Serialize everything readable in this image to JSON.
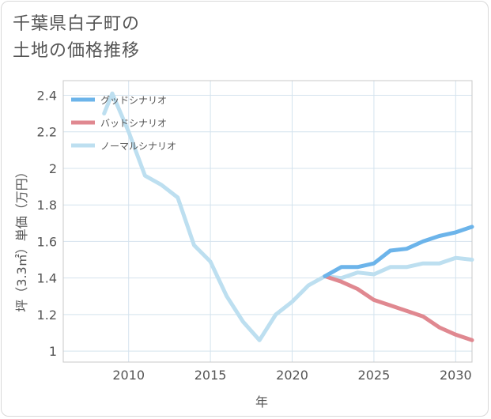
{
  "header": {
    "title_line1": "千葉県白子町の",
    "title_line2": "土地の価格推移"
  },
  "chart_data": {
    "type": "line",
    "xlabel": "年",
    "ylabel": "坪（3.3㎡）単価（万円）",
    "xlim": [
      2006,
      2031
    ],
    "ylim": [
      0.94,
      2.48
    ],
    "x_ticks": [
      2010,
      2015,
      2020,
      2025,
      2030
    ],
    "y_ticks": [
      1,
      1.2,
      1.4,
      1.6,
      1.8,
      2,
      2.2,
      2.4
    ],
    "y_tick_labels": [
      "1",
      "1.2",
      "1.4",
      "1.6",
      "1.8",
      "2",
      "2.2",
      "2.4"
    ],
    "grid": true,
    "legend_position": "top-left",
    "series": [
      {
        "name": "グッドシナリオ",
        "color": "#6cb4ea",
        "x": [
          2022,
          2023,
          2024,
          2025,
          2026,
          2027,
          2028,
          2029,
          2030,
          2031
        ],
        "values": [
          1.41,
          1.46,
          1.46,
          1.48,
          1.55,
          1.56,
          1.6,
          1.63,
          1.65,
          1.68
        ]
      },
      {
        "name": "バッドシナリオ",
        "color": "#e08890",
        "x": [
          2022,
          2023,
          2024,
          2025,
          2026,
          2027,
          2028,
          2029,
          2030,
          2031
        ],
        "values": [
          1.41,
          1.38,
          1.34,
          1.28,
          1.25,
          1.22,
          1.19,
          1.13,
          1.09,
          1.06
        ]
      },
      {
        "name": "ノーマルシナリオ",
        "color": "#bddff0",
        "x": [
          2008.5,
          2009,
          2010,
          2011,
          2012,
          2013,
          2014,
          2015,
          2016,
          2017,
          2018,
          2019,
          2020,
          2021,
          2022,
          2023,
          2024,
          2025,
          2026,
          2027,
          2028,
          2029,
          2030,
          2031
        ],
        "values": [
          2.3,
          2.41,
          2.2,
          1.96,
          1.91,
          1.84,
          1.58,
          1.49,
          1.3,
          1.16,
          1.06,
          1.2,
          1.27,
          1.36,
          1.41,
          1.4,
          1.43,
          1.42,
          1.46,
          1.46,
          1.48,
          1.48,
          1.51,
          1.5
        ]
      }
    ]
  }
}
